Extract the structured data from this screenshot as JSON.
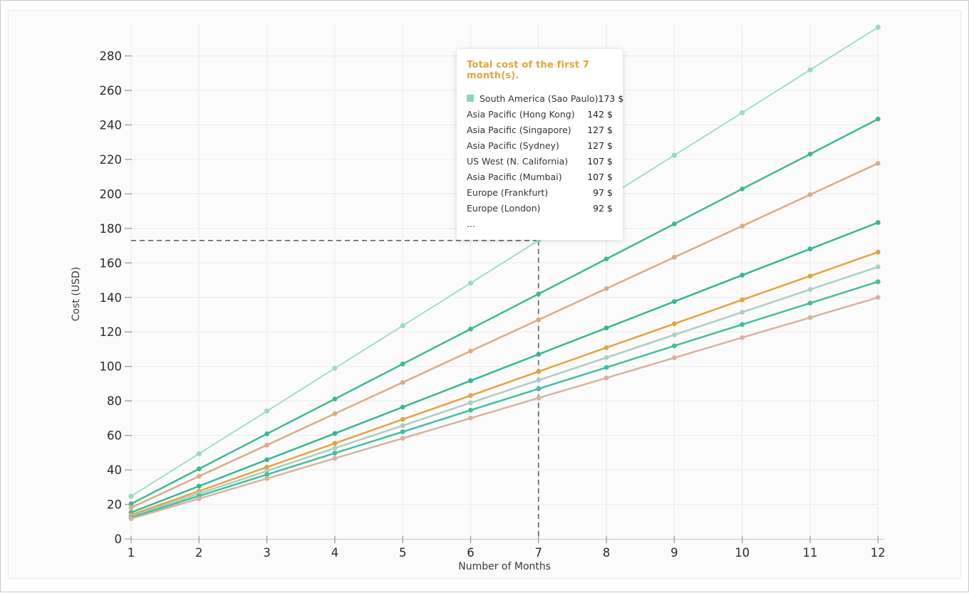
{
  "accent_colors": {
    "tooltip_title": "#e7a33c",
    "tooltip_marker": "#86d8bd",
    "crosshair": "#4a4a4a"
  },
  "tooltip": {
    "title": "Total cost of the first 7 month(s).",
    "rows": [
      {
        "label": "South America (Sao Paulo)",
        "value": "173 $",
        "marked": true
      },
      {
        "label": "Asia Pacific (Hong Kong)",
        "value": "142 $",
        "marked": false
      },
      {
        "label": "Asia Pacific (Singapore)",
        "value": "127 $",
        "marked": false
      },
      {
        "label": "Asia Pacific (Sydney)",
        "value": "127 $",
        "marked": false
      },
      {
        "label": "US West (N. California)",
        "value": "107 $",
        "marked": false
      },
      {
        "label": "Asia Pacific (Mumbai)",
        "value": "107 $",
        "marked": false
      },
      {
        "label": "Europe (Frankfurt)",
        "value": "97 $",
        "marked": false
      },
      {
        "label": "Europe (London)",
        "value": "92 $",
        "marked": false
      },
      {
        "label": "...",
        "value": "",
        "marked": false
      }
    ]
  },
  "chart_data": {
    "type": "line",
    "title": "",
    "xlabel": "Number of Months",
    "ylabel": "Cost (USD)",
    "x": [
      1,
      2,
      3,
      4,
      5,
      6,
      7,
      8,
      9,
      10,
      11,
      12
    ],
    "xlim": [
      1,
      12
    ],
    "ylim": [
      0,
      280
    ],
    "ytick_step": 20,
    "grid": true,
    "legend_position": "tooltip-overlay",
    "crosshair": {
      "month": 7,
      "value": 173
    },
    "series": [
      {
        "name": "South America (Sao Paulo)",
        "color": "#97dcc2",
        "line_width": 1.8,
        "marker_r": 3.6,
        "values": [
          24.7,
          49.4,
          74.1,
          98.9,
          123.6,
          148.3,
          173,
          197.7,
          222.4,
          247.1,
          271.9,
          296.6
        ]
      },
      {
        "name": "Asia Pacific (Hong Kong)",
        "color": "#3cba92",
        "line_width": 2.5,
        "marker_r": 3.4,
        "values": [
          20.3,
          40.6,
          60.9,
          81.1,
          101.4,
          121.7,
          142,
          162.3,
          182.6,
          202.9,
          223.1,
          243.4
        ]
      },
      {
        "name": "Asia Pacific (Singapore) / Asia Pacific (Sydney)",
        "color": "#dcab83",
        "line_width": 2.5,
        "marker_r": 3.4,
        "values": [
          18.1,
          36.3,
          54.4,
          72.6,
          90.7,
          108.9,
          127,
          145.1,
          163.3,
          181.4,
          199.6,
          217.7
        ]
      },
      {
        "name": "US West (N. California) / Asia Pacific (Mumbai)",
        "color": "#35b795",
        "line_width": 2.5,
        "marker_r": 3.4,
        "values": [
          15.3,
          30.6,
          45.9,
          61.1,
          76.4,
          91.7,
          107,
          122.3,
          137.6,
          152.9,
          168.1,
          183.4
        ]
      },
      {
        "name": "Europe (Frankfurt)",
        "color": "#e2a53e",
        "line_width": 2.5,
        "marker_r": 3.4,
        "values": [
          13.9,
          27.7,
          41.6,
          55.4,
          69.3,
          83.1,
          97,
          110.9,
          124.7,
          138.6,
          152.4,
          166.3
        ]
      },
      {
        "name": "Europe (London)",
        "color": "#a9cfc2",
        "line_width": 2.5,
        "marker_r": 3.4,
        "values": [
          13.1,
          26.3,
          39.4,
          52.6,
          65.7,
          78.9,
          92,
          105.1,
          118.3,
          131.4,
          144.6,
          157.7
        ]
      },
      {
        "name": "…",
        "color": "#41bf9d",
        "line_width": 2.5,
        "marker_r": 3.4,
        "values": [
          12.4,
          24.9,
          37.3,
          49.7,
          62.1,
          74.6,
          87,
          99.4,
          111.9,
          124.3,
          136.7,
          149.1
        ]
      },
      {
        "name": "…",
        "color": "#d9b29d",
        "line_width": 2.5,
        "marker_r": 3.4,
        "values": [
          11.7,
          23.3,
          35,
          46.7,
          58.3,
          70,
          81.7,
          93.3,
          105,
          116.7,
          128.3,
          140
        ]
      }
    ]
  }
}
